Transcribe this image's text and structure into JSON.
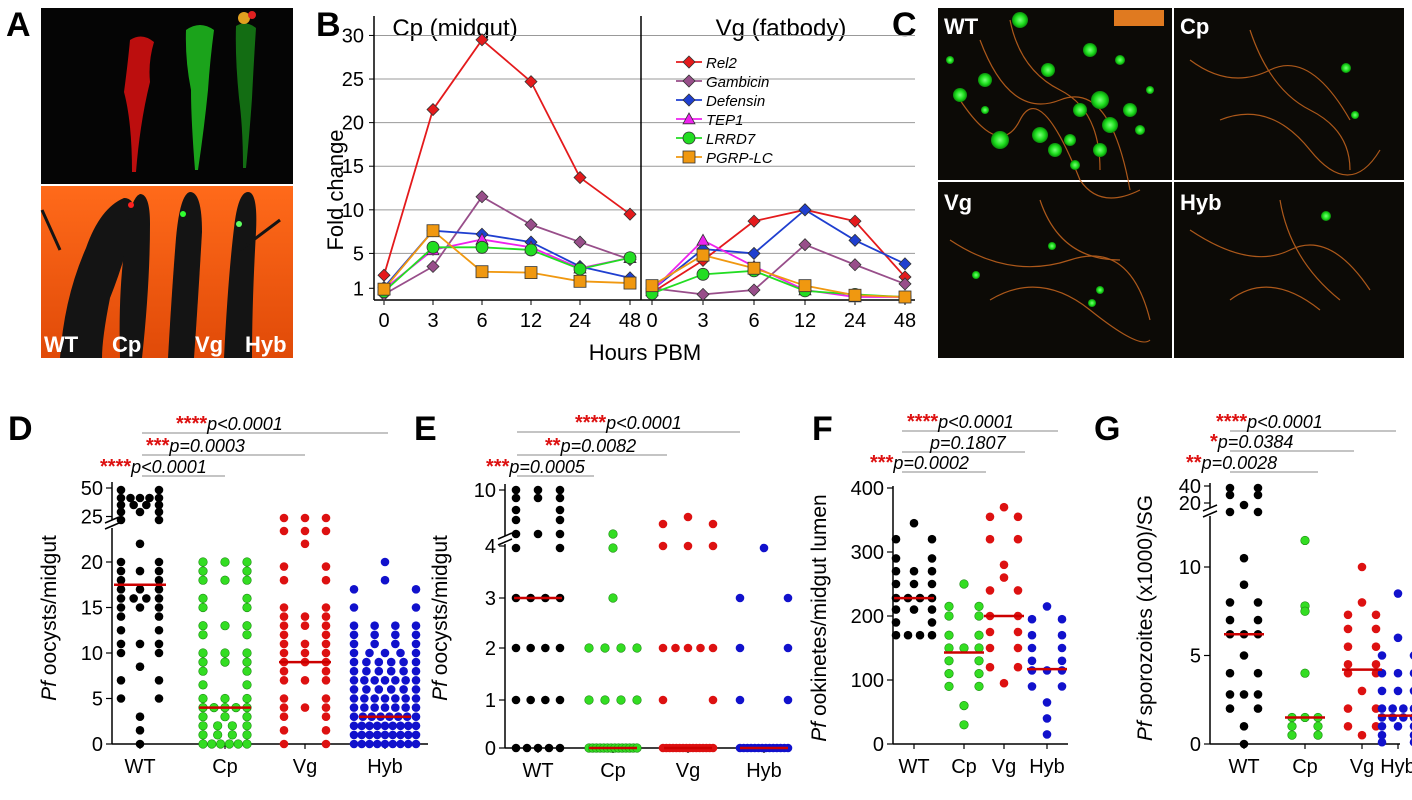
{
  "panel_labels": {
    "A": "A",
    "B": "B",
    "C": "C",
    "D": "D",
    "E": "E",
    "F": "F",
    "G": "G"
  },
  "panel_a": {
    "strain_labels": [
      "WT",
      "Cp",
      "Vg",
      "Hyb"
    ]
  },
  "panel_c": {
    "labels": [
      "WT",
      "Cp",
      "Vg",
      "Hyb"
    ]
  },
  "colors": {
    "WT": "#000000",
    "Cp": "#33dd22",
    "Vg": "#dd1111",
    "Hyb": "#1111cc",
    "median": "#cc0000",
    "Rel2": "#e41a1c",
    "Gambicin": "#984e8a",
    "Defensin": "#1f3fd0",
    "TEP1": "#ee22ee",
    "LRRD7": "#22dd22",
    "PGRP-LC": "#f09810"
  },
  "chart_data": [
    {
      "id": "B",
      "type": "line",
      "titles": [
        "Cp (midgut)",
        "Vg (fatbody)"
      ],
      "xlabel": "Hours PBM",
      "ylabel": "Fold change",
      "x": [
        "0",
        "3",
        "6",
        "12",
        "24",
        "48"
      ],
      "yticks": [
        "30",
        "25",
        "20",
        "15",
        "10",
        "5",
        "1"
      ],
      "ylim": [
        0,
        32
      ],
      "legend_position": "top-right of right subplot",
      "series": [
        {
          "name": "Rel2",
          "marker": "diamond",
          "cp": [
            2.5,
            21.5,
            29.5,
            24.7,
            13.7,
            9.5
          ],
          "vg": [
            0.5,
            4.2,
            8.7,
            10,
            8.7,
            2.3
          ]
        },
        {
          "name": "Gambicin",
          "marker": "diamond",
          "cp": [
            0.3,
            3.5,
            11.5,
            8.3,
            6.3,
            4.3
          ],
          "vg": [
            1.0,
            0.3,
            0.8,
            6.0,
            3.7,
            1.5
          ]
        },
        {
          "name": "Defensin",
          "marker": "diamond",
          "cp": [
            1.1,
            7.6,
            7.2,
            6.3,
            3.5,
            2.2
          ],
          "vg": [
            0.8,
            5.5,
            5.0,
            10,
            6.5,
            3.8
          ]
        },
        {
          "name": "TEP1",
          "marker": "triangle",
          "cp": [
            0.9,
            5.4,
            6.6,
            5.7,
            3.3,
            4.5
          ],
          "vg": [
            0.7,
            6.5,
            3.5,
            0.8,
            0,
            0
          ]
        },
        {
          "name": "LRRD7",
          "marker": "circle",
          "cp": [
            0.6,
            5.7,
            5.7,
            5.4,
            3.2,
            4.5
          ],
          "vg": [
            0.4,
            2.6,
            3.0,
            0.7,
            0.3,
            0
          ]
        },
        {
          "name": "PGRP-LC",
          "marker": "square",
          "cp": [
            0.9,
            7.6,
            2.9,
            2.8,
            1.8,
            1.6
          ],
          "vg": [
            1.3,
            4.8,
            3.3,
            1.3,
            0.2,
            0
          ]
        }
      ]
    },
    {
      "id": "D",
      "type": "scatter",
      "ylabel_italic": "Pf",
      "ylabel": " oocysts/midgut",
      "categories": [
        "WT",
        "Cp",
        "Vg",
        "Hyb"
      ],
      "yticks": [
        "0",
        "5",
        "10",
        "15",
        "20",
        "25",
        "50"
      ],
      "medians": [
        17.5,
        4,
        9,
        3
      ],
      "stats": [
        {
          "stars": "****",
          "p": "p<0.0001"
        },
        {
          "stars": "***",
          "p": "p=0.0003"
        },
        {
          "stars": "****",
          "p": "p<0.0001"
        }
      ]
    },
    {
      "id": "E",
      "type": "scatter",
      "ylabel_italic": "Pf",
      "ylabel": " oocysts/midgut",
      "categories": [
        "WT",
        "Cp",
        "Vg",
        "Hyb"
      ],
      "yticks": [
        "0",
        "1",
        "2",
        "3",
        "4",
        "10"
      ],
      "medians": [
        3,
        0,
        0,
        0
      ],
      "stats": [
        {
          "stars": "***",
          "p": "p=0.0005"
        },
        {
          "stars": "**",
          "p": "p=0.0082"
        },
        {
          "stars": "****",
          "p": "p<0.0001"
        }
      ]
    },
    {
      "id": "F",
      "type": "scatter",
      "ylabel_italic": "Pf",
      "ylabel": " ookinetes/midgut lumen",
      "categories": [
        "WT",
        "Cp",
        "Vg",
        "Hyb"
      ],
      "yticks": [
        "0",
        "100",
        "200",
        "300",
        "400"
      ],
      "medians": [
        228,
        143,
        200,
        117
      ],
      "stats": [
        {
          "stars": "***",
          "p": "p=0.0002"
        },
        {
          "stars": "",
          "p": "p=0.1807"
        },
        {
          "stars": "****",
          "p": "p<0.0001"
        }
      ]
    },
    {
      "id": "G",
      "type": "scatter",
      "ylabel_italic": "Pf",
      "ylabel": " sporozoites (x1000)/SG",
      "categories": [
        "WT",
        "Cp",
        "Vg",
        "Hyb"
      ],
      "yticks": [
        "0",
        "5",
        "10",
        "20",
        "40"
      ],
      "medians": [
        6.2,
        1.5,
        4.2,
        1.6
      ],
      "stats": [
        {
          "stars": "**",
          "p": "p=0.0028"
        },
        {
          "stars": "*",
          "p": "p=0.0384"
        },
        {
          "stars": "****",
          "p": "p<0.0001"
        }
      ]
    }
  ]
}
